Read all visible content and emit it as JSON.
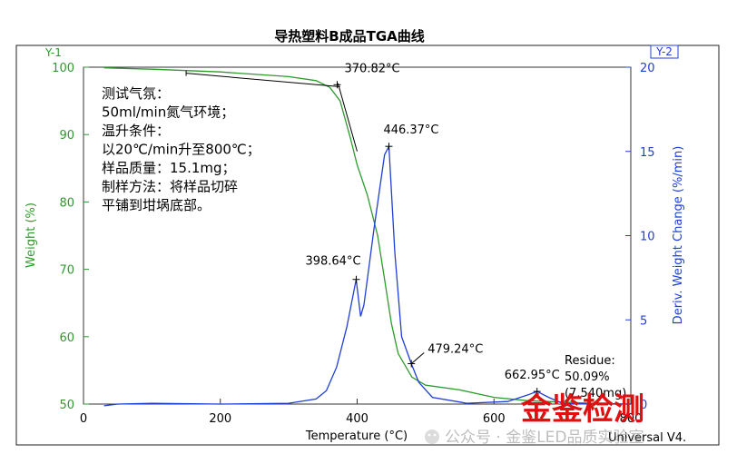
{
  "chart_data": {
    "type": "line",
    "title": "导热塑料B成品TGA曲线",
    "xlabel": "Temperature (°C)",
    "xlim": [
      0,
      800
    ],
    "x_ticks": [
      "0",
      "200",
      "400",
      "600",
      "800"
    ],
    "y_left": {
      "corner_label": "Y-1",
      "label": "Weight (%)",
      "ylim": [
        50,
        100
      ],
      "ticks": [
        "50",
        "60",
        "70",
        "80",
        "90",
        "100"
      ],
      "color": "#2e9a2e"
    },
    "y_right": {
      "corner_label": "Y-2",
      "label": "Deriv. Weight Change (%/min)",
      "ylim": [
        0,
        20
      ],
      "ticks": [
        "0",
        "5",
        "10",
        "15",
        "20"
      ],
      "color": "#1f3fd6"
    },
    "series": [
      {
        "axis": "left",
        "color": "#2e9a2e",
        "points": [
          [
            30,
            99.9
          ],
          [
            100,
            99.7
          ],
          [
            200,
            99.3
          ],
          [
            300,
            98.6
          ],
          [
            340,
            98.0
          ],
          [
            360,
            97.0
          ],
          [
            375,
            95.0
          ],
          [
            390,
            89.5
          ],
          [
            400,
            85.5
          ],
          [
            415,
            81.0
          ],
          [
            430,
            75.0
          ],
          [
            440,
            68.5
          ],
          [
            450,
            62.0
          ],
          [
            460,
            57.5
          ],
          [
            480,
            54.0
          ],
          [
            500,
            52.8
          ],
          [
            550,
            52.1
          ],
          [
            600,
            51.0
          ],
          [
            650,
            50.5
          ],
          [
            700,
            50.3
          ],
          [
            750,
            50.1
          ],
          [
            800,
            50.0
          ]
        ]
      },
      {
        "axis": "right",
        "color": "#1f3fd6",
        "points": [
          [
            30,
            -0.1
          ],
          [
            50,
            0.0
          ],
          [
            100,
            0.05
          ],
          [
            200,
            0.0
          ],
          [
            300,
            0.05
          ],
          [
            340,
            0.3
          ],
          [
            355,
            0.8
          ],
          [
            370,
            2.2
          ],
          [
            385,
            4.6
          ],
          [
            398.6,
            7.4
          ],
          [
            405,
            5.2
          ],
          [
            410,
            5.9
          ],
          [
            425,
            10.5
          ],
          [
            440,
            14.8
          ],
          [
            446.4,
            15.3
          ],
          [
            455,
            9.0
          ],
          [
            465,
            4.0
          ],
          [
            479.2,
            2.4
          ],
          [
            490,
            1.3
          ],
          [
            510,
            0.4
          ],
          [
            560,
            0.05
          ],
          [
            620,
            0.15
          ],
          [
            650,
            0.55
          ],
          [
            663,
            0.75
          ],
          [
            680,
            0.4
          ],
          [
            700,
            0.05
          ],
          [
            750,
            0.0
          ],
          [
            800,
            0.0
          ]
        ]
      }
    ],
    "annotations": [
      {
        "text": "370.82°C",
        "x": 370.82,
        "axis": "left",
        "y": 97.4
      },
      {
        "text": "446.37°C",
        "x": 446.37,
        "axis": "right",
        "y": 15.3
      },
      {
        "text": "398.64°C",
        "x": 398.64,
        "axis": "right",
        "y": 7.4
      },
      {
        "text": "479.24°C",
        "x": 479.24,
        "axis": "right",
        "y": 2.4
      },
      {
        "text": "662.95°C",
        "x": 662.95,
        "axis": "right",
        "y": 0.75
      }
    ],
    "residue": [
      "Residue:",
      "50.09%",
      "(7.540mg)"
    ],
    "notes": [
      "测试气氛：",
      "50ml/min氮气环境；",
      "温升条件：",
      "以20℃/min升至800℃；",
      "样品质量：15.1mg；",
      "制样方法：将样品切碎",
      "平铺到坩埚底部。"
    ],
    "software_label": "Universal V4.",
    "watermark": "金鉴检测",
    "footer_watermark": "公众号 · 金鉴LED品质实验室"
  }
}
